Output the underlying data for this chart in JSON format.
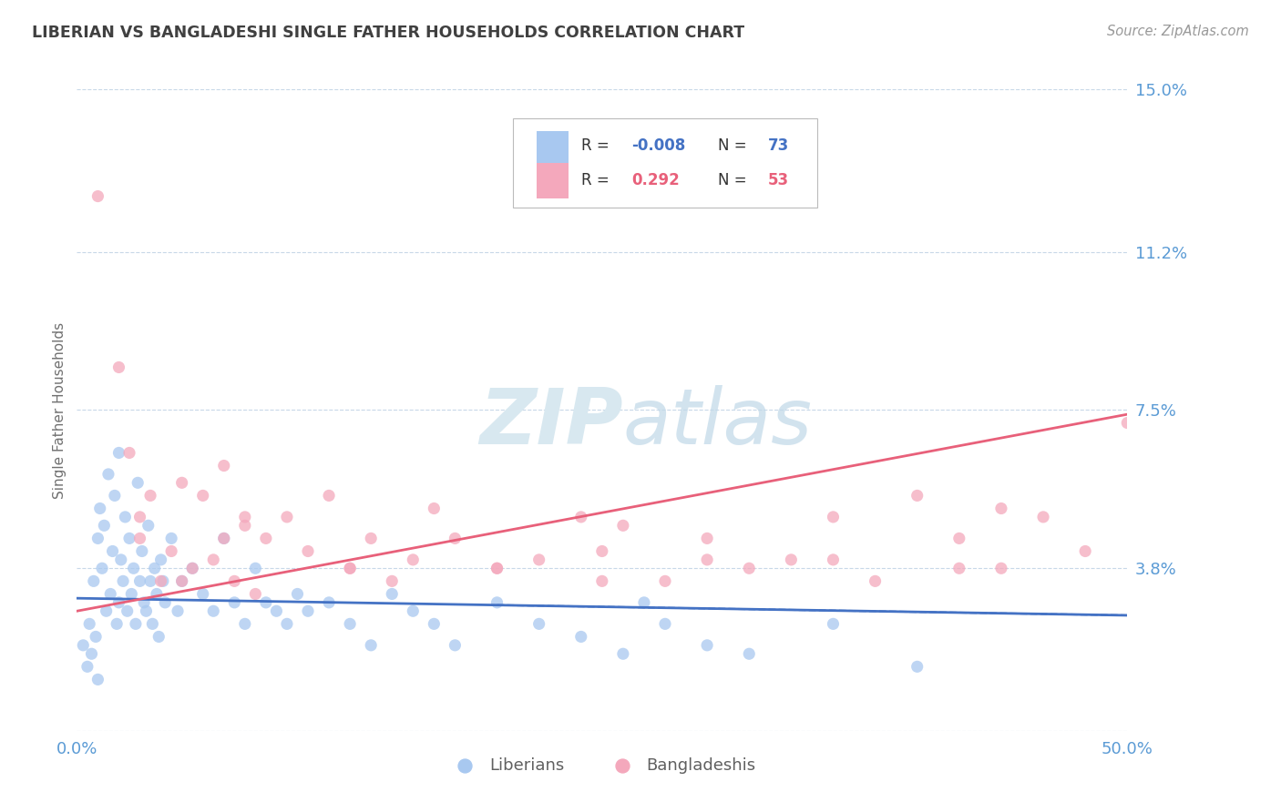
{
  "title": "LIBERIAN VS BANGLADESHI SINGLE FATHER HOUSEHOLDS CORRELATION CHART",
  "source_text": "Source: ZipAtlas.com",
  "ylabel": "Single Father Households",
  "xlim": [
    0.0,
    50.0
  ],
  "ylim": [
    0.0,
    15.0
  ],
  "legend_R_blue": "-0.008",
  "legend_N_blue": "73",
  "legend_R_pink": "0.292",
  "legend_N_pink": "53",
  "legend_label_blue": "Liberians",
  "legend_label_pink": "Bangladeshis",
  "blue_color": "#A8C8F0",
  "pink_color": "#F4A8BC",
  "blue_line_color": "#4472C4",
  "pink_line_color": "#E8607A",
  "title_color": "#404040",
  "tick_label_color": "#5B9BD5",
  "watermark_color": "#D8E8F0",
  "background_color": "#FFFFFF",
  "grid_color": "#C8D8E8",
  "y_tick_vals": [
    0.0,
    3.8,
    7.5,
    11.2,
    15.0
  ],
  "blue_intercept": 3.1,
  "blue_slope": -0.008,
  "pink_intercept": 2.8,
  "pink_slope": 0.092,
  "blue_scatter_x": [
    0.3,
    0.5,
    0.6,
    0.7,
    0.8,
    0.9,
    1.0,
    1.0,
    1.1,
    1.2,
    1.3,
    1.4,
    1.5,
    1.6,
    1.7,
    1.8,
    1.9,
    2.0,
    2.0,
    2.1,
    2.2,
    2.3,
    2.4,
    2.5,
    2.6,
    2.7,
    2.8,
    2.9,
    3.0,
    3.1,
    3.2,
    3.3,
    3.4,
    3.5,
    3.6,
    3.7,
    3.8,
    3.9,
    4.0,
    4.1,
    4.2,
    4.5,
    4.8,
    5.0,
    5.5,
    6.0,
    6.5,
    7.0,
    7.5,
    8.0,
    8.5,
    9.0,
    9.5,
    10.0,
    10.5,
    11.0,
    12.0,
    13.0,
    14.0,
    15.0,
    16.0,
    17.0,
    18.0,
    20.0,
    22.0,
    24.0,
    26.0,
    27.0,
    28.0,
    30.0,
    32.0,
    36.0,
    40.0
  ],
  "blue_scatter_y": [
    2.0,
    1.5,
    2.5,
    1.8,
    3.5,
    2.2,
    4.5,
    1.2,
    5.2,
    3.8,
    4.8,
    2.8,
    6.0,
    3.2,
    4.2,
    5.5,
    2.5,
    3.0,
    6.5,
    4.0,
    3.5,
    5.0,
    2.8,
    4.5,
    3.2,
    3.8,
    2.5,
    5.8,
    3.5,
    4.2,
    3.0,
    2.8,
    4.8,
    3.5,
    2.5,
    3.8,
    3.2,
    2.2,
    4.0,
    3.5,
    3.0,
    4.5,
    2.8,
    3.5,
    3.8,
    3.2,
    2.8,
    4.5,
    3.0,
    2.5,
    3.8,
    3.0,
    2.8,
    2.5,
    3.2,
    2.8,
    3.0,
    2.5,
    2.0,
    3.2,
    2.8,
    2.5,
    2.0,
    3.0,
    2.5,
    2.2,
    1.8,
    3.0,
    2.5,
    2.0,
    1.8,
    2.5,
    1.5
  ],
  "pink_scatter_x": [
    1.0,
    2.0,
    2.5,
    3.0,
    3.5,
    4.0,
    4.5,
    5.0,
    5.5,
    6.0,
    6.5,
    7.0,
    7.5,
    8.0,
    8.5,
    9.0,
    10.0,
    11.0,
    12.0,
    13.0,
    14.0,
    15.0,
    16.0,
    17.0,
    18.0,
    20.0,
    22.0,
    24.0,
    25.0,
    26.0,
    28.0,
    30.0,
    32.0,
    34.0,
    36.0,
    38.0,
    40.0,
    42.0,
    44.0,
    46.0,
    48.0,
    50.0,
    7.0,
    13.0,
    25.0,
    36.0,
    44.0,
    3.0,
    5.0,
    8.0,
    20.0,
    30.0,
    42.0
  ],
  "pink_scatter_y": [
    12.5,
    8.5,
    6.5,
    5.0,
    5.5,
    3.5,
    4.2,
    5.8,
    3.8,
    5.5,
    4.0,
    6.2,
    3.5,
    4.8,
    3.2,
    4.5,
    5.0,
    4.2,
    5.5,
    3.8,
    4.5,
    3.5,
    4.0,
    5.2,
    4.5,
    3.8,
    4.0,
    5.0,
    4.2,
    4.8,
    3.5,
    4.5,
    3.8,
    4.0,
    5.0,
    3.5,
    5.5,
    4.5,
    3.8,
    5.0,
    4.2,
    7.2,
    4.5,
    3.8,
    3.5,
    4.0,
    5.2,
    4.5,
    3.5,
    5.0,
    3.8,
    4.0,
    3.8
  ]
}
